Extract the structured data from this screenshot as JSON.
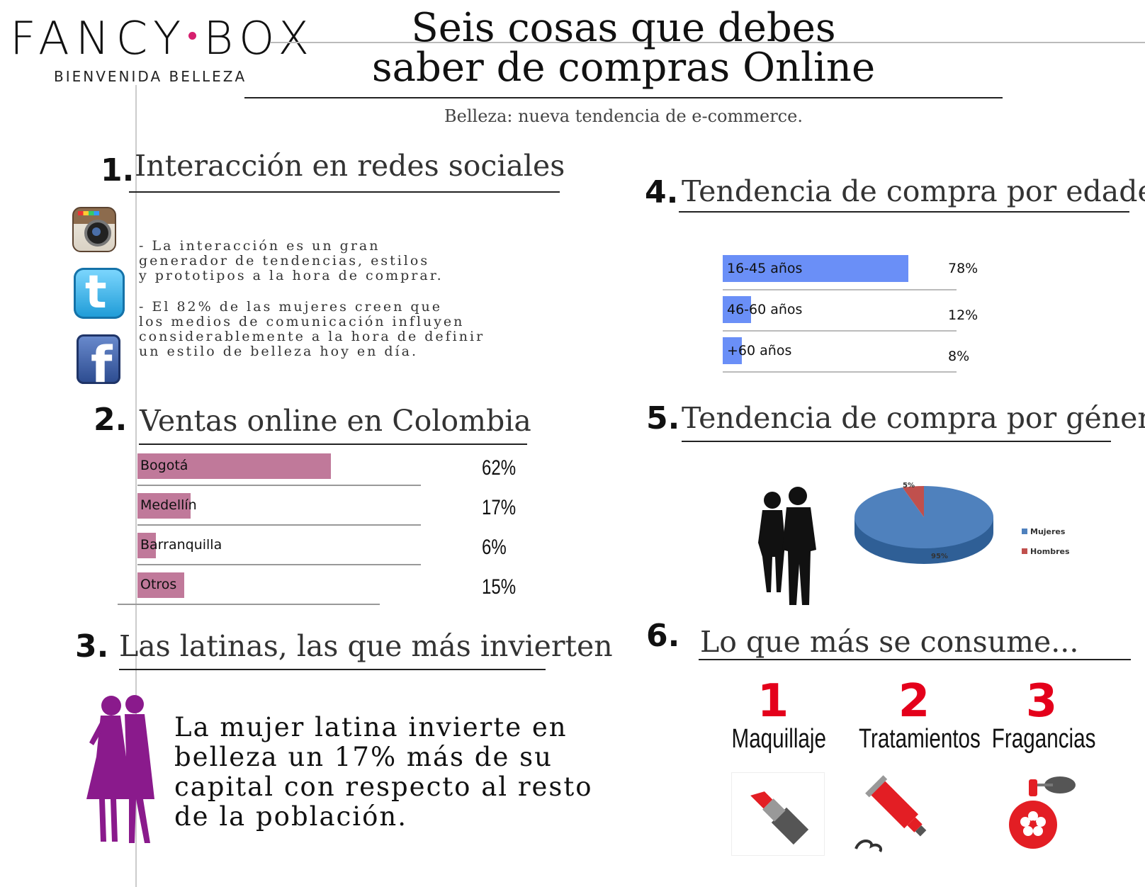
{
  "brand": {
    "name_left": "FANCY",
    "name_right": "BOX",
    "tagline": "BIENVENIDA BELLEZA",
    "dot_color": "#d61f6e"
  },
  "title": {
    "line1": "Seis cosas que debes",
    "line2": "saber de compras Online"
  },
  "subtitle": "Belleza: nueva tendencia de e-commerce.",
  "sections": {
    "s1": {
      "number": "1.",
      "heading": "Interacción en redes sociales",
      "p1": [
        "- La interacción es un gran",
        "generador de tendencias, estilos",
        "y prototipos a la hora de comprar."
      ],
      "p2": [
        "- El 82% de las mujeres creen que",
        "los medios de comunicación influyen",
        "considerablemente a la hora de definir",
        "un estilo de belleza hoy en día."
      ],
      "icons": [
        "instagram-icon",
        "twitter-icon",
        "facebook-icon"
      ]
    },
    "s2": {
      "number": "2.",
      "heading": "Ventas online en Colombia"
    },
    "s3": {
      "number": "3.",
      "heading": "Las latinas, las que más invierten",
      "text": [
        "La mujer latina invierte en",
        "belleza un 17% más de su",
        "capital con respecto al resto",
        "de la población."
      ]
    },
    "s4": {
      "number": "4.",
      "heading": "Tendencia de compra por edades"
    },
    "s5": {
      "number": "5.",
      "heading": "Tendencia de compra por género"
    },
    "s6": {
      "number": "6.",
      "heading": "Lo que más se consume...",
      "items": [
        {
          "rank": "1",
          "label": "Maquillaje",
          "icon": "lipstick-icon"
        },
        {
          "rank": "2",
          "label": "Tratamientos",
          "icon": "cream-tube-icon"
        },
        {
          "rank": "3",
          "label": "Fragancias",
          "icon": "perfume-icon"
        }
      ]
    }
  },
  "chart_data": [
    {
      "type": "bar",
      "title": "Ventas online en Colombia",
      "categories": [
        "Bogotá",
        "Medellín",
        "Barranquilla",
        "Otros"
      ],
      "values": [
        62,
        17,
        6,
        15
      ],
      "value_labels": [
        "62%",
        "17%",
        "6%",
        "15%"
      ],
      "color": "#c0799a"
    },
    {
      "type": "bar",
      "title": "Tendencia de compra por edades",
      "categories": [
        "16-45 años",
        "46-60 años",
        "+60 años"
      ],
      "values": [
        78,
        12,
        8
      ],
      "value_labels": [
        "78%",
        "12%",
        "8%"
      ],
      "color": "#6a8ff7"
    },
    {
      "type": "pie",
      "title": "Tendencia de compra por género",
      "categories": [
        "Mujeres",
        "Hombres"
      ],
      "values": [
        95,
        5
      ],
      "value_labels": [
        "95%",
        "5%"
      ],
      "colors": [
        "#4f81bd",
        "#c0504d"
      ],
      "legend": "right"
    }
  ]
}
